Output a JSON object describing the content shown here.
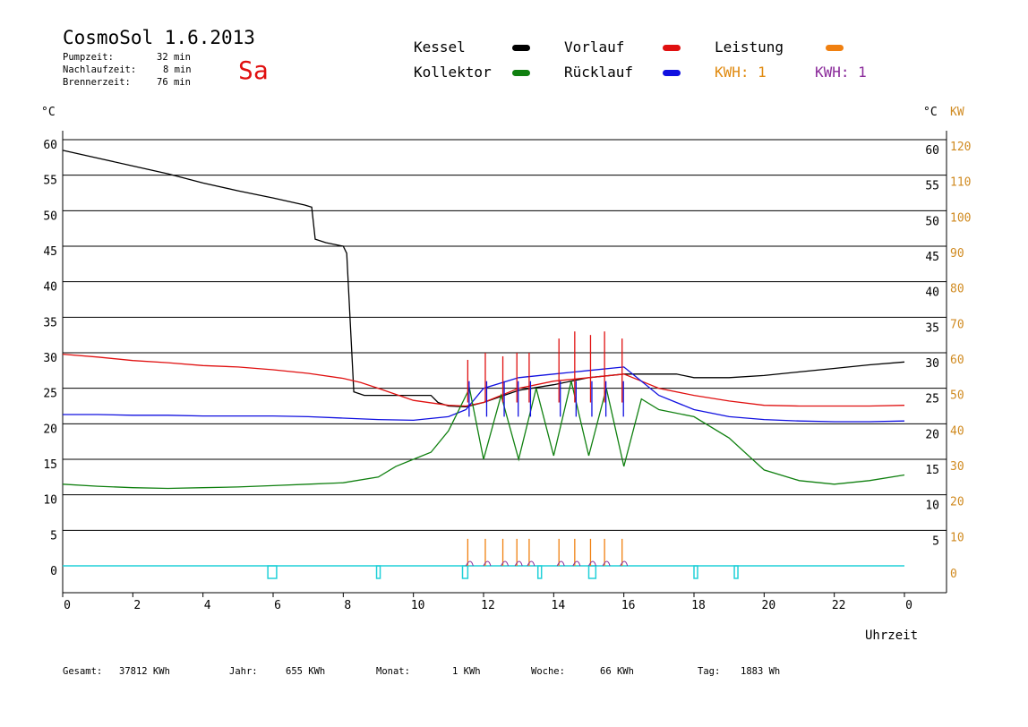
{
  "header": {
    "title": "CosmoSol 1.6.2013",
    "day": "Sa",
    "stats": [
      {
        "label": "Pumpzeit:",
        "value": "32 min"
      },
      {
        "label": "Nachlaufzeit:",
        "value": "8 min"
      },
      {
        "label": "Brennerzeit:",
        "value": "76 min"
      }
    ]
  },
  "legend": [
    {
      "name": "Kessel",
      "color": "#000000"
    },
    {
      "name": "Vorlauf",
      "color": "#e01010"
    },
    {
      "name": "Leistung",
      "color": "#f08010"
    },
    {
      "name": "Kollektor",
      "color": "#108010"
    },
    {
      "name": "Rücklauf",
      "color": "#1010e0"
    },
    {
      "name": "KWH: 1",
      "color": "#e08a10"
    },
    {
      "name": "KWH: 1",
      "color": "#8a2a9a"
    }
  ],
  "footer": [
    {
      "label": "Gesamt:",
      "value": "37812 KWh"
    },
    {
      "label": "Jahr:",
      "value": "655 KWh"
    },
    {
      "label": "Monat:",
      "value": "1 KWh"
    },
    {
      "label": "Woche:",
      "value": "66 KWh"
    },
    {
      "label": "Tag:",
      "value": "1883 Wh"
    }
  ],
  "chart_data": {
    "type": "line",
    "xlabel": "Uhrzeit",
    "ylabel_left": "°C",
    "ylabel_right": "°C",
    "ylabel_right2": "KW",
    "xlim": [
      0,
      24
    ],
    "ylim": [
      0,
      60
    ],
    "ylim_right2": [
      0,
      120
    ],
    "grid": true,
    "x_ticks": [
      "0",
      "2",
      "4",
      "6",
      "8",
      "10",
      "12",
      "14",
      "16",
      "18",
      "20",
      "22",
      "0"
    ],
    "y_ticks": [
      "0",
      "5",
      "10",
      "15",
      "20",
      "25",
      "30",
      "35",
      "40",
      "45",
      "50",
      "55",
      "60"
    ],
    "y2_ticks": [
      "10",
      "20",
      "30",
      "40",
      "50",
      "60",
      "70",
      "80",
      "90",
      "100",
      "110",
      "120"
    ],
    "series": [
      {
        "name": "Kessel",
        "color": "#000000",
        "points": [
          [
            0,
            58.5
          ],
          [
            1,
            57.4
          ],
          [
            2,
            56.3
          ],
          [
            3,
            55.2
          ],
          [
            4,
            53.9
          ],
          [
            5,
            52.8
          ],
          [
            6,
            51.8
          ],
          [
            6.9,
            50.8
          ],
          [
            7.1,
            50.5
          ],
          [
            7.2,
            46
          ],
          [
            7.5,
            45.5
          ],
          [
            8.0,
            45
          ],
          [
            8.1,
            44
          ],
          [
            8.3,
            24.5
          ],
          [
            8.6,
            24
          ],
          [
            9.5,
            24
          ],
          [
            10.5,
            24
          ],
          [
            10.7,
            23
          ],
          [
            11.0,
            22.5
          ],
          [
            11.5,
            22.4
          ],
          [
            12.0,
            23
          ],
          [
            13.0,
            24.7
          ],
          [
            14.0,
            25.5
          ],
          [
            15.0,
            26.5
          ],
          [
            16.0,
            27
          ],
          [
            17.5,
            27
          ],
          [
            18.0,
            26.5
          ],
          [
            19.0,
            26.5
          ],
          [
            20.0,
            26.8
          ],
          [
            21.0,
            27.3
          ],
          [
            22.0,
            27.8
          ],
          [
            23.0,
            28.3
          ],
          [
            24.0,
            28.7
          ]
        ]
      },
      {
        "name": "Vorlauf",
        "color": "#e01010",
        "points": [
          [
            0,
            29.8
          ],
          [
            1,
            29.4
          ],
          [
            2,
            28.9
          ],
          [
            3,
            28.6
          ],
          [
            4,
            28.2
          ],
          [
            5,
            28
          ],
          [
            6,
            27.6
          ],
          [
            7,
            27.1
          ],
          [
            8,
            26.4
          ],
          [
            8.5,
            25.8
          ],
          [
            9,
            25
          ],
          [
            10,
            23.3
          ],
          [
            11,
            22.6
          ],
          [
            11.5,
            22.5
          ],
          [
            12,
            23
          ],
          [
            13,
            25
          ],
          [
            14,
            26
          ],
          [
            15,
            26.5
          ],
          [
            16,
            27
          ],
          [
            16.5,
            26
          ],
          [
            17,
            25
          ],
          [
            18,
            24
          ],
          [
            19,
            23.2
          ],
          [
            20,
            22.6
          ],
          [
            21,
            22.5
          ],
          [
            22,
            22.5
          ],
          [
            23,
            22.5
          ],
          [
            24,
            22.6
          ]
        ]
      },
      {
        "name": "Rücklauf",
        "color": "#1010e0",
        "points": [
          [
            0,
            21.3
          ],
          [
            1,
            21.3
          ],
          [
            2,
            21.2
          ],
          [
            3,
            21.2
          ],
          [
            4,
            21.1
          ],
          [
            5,
            21.1
          ],
          [
            6,
            21.1
          ],
          [
            7,
            21
          ],
          [
            8,
            20.8
          ],
          [
            9,
            20.6
          ],
          [
            10,
            20.5
          ],
          [
            11,
            21
          ],
          [
            11.5,
            22
          ],
          [
            12,
            25
          ],
          [
            13,
            26.5
          ],
          [
            14,
            27
          ],
          [
            15,
            27.5
          ],
          [
            16,
            28
          ],
          [
            16.5,
            26
          ],
          [
            17,
            24
          ],
          [
            18,
            22
          ],
          [
            19,
            21
          ],
          [
            20,
            20.6
          ],
          [
            21,
            20.4
          ],
          [
            22,
            20.3
          ],
          [
            23,
            20.3
          ],
          [
            24,
            20.4
          ]
        ]
      },
      {
        "name": "Kollektor",
        "color": "#108010",
        "points": [
          [
            0,
            11.5
          ],
          [
            1,
            11.2
          ],
          [
            2,
            11
          ],
          [
            3,
            10.9
          ],
          [
            4,
            11
          ],
          [
            5,
            11.1
          ],
          [
            6,
            11.3
          ],
          [
            7,
            11.5
          ],
          [
            8,
            11.7
          ],
          [
            9,
            12.5
          ],
          [
            9.5,
            14
          ],
          [
            10,
            15
          ],
          [
            10.5,
            16
          ],
          [
            11,
            19
          ],
          [
            11.3,
            22
          ],
          [
            11.6,
            25
          ],
          [
            12,
            15
          ],
          [
            12.5,
            24
          ],
          [
            13,
            15
          ],
          [
            13.5,
            25
          ],
          [
            14,
            15.5
          ],
          [
            14.5,
            26
          ],
          [
            15,
            15.5
          ],
          [
            15.5,
            25
          ],
          [
            16,
            14
          ],
          [
            16.5,
            23.5
          ],
          [
            17,
            22
          ],
          [
            18,
            21
          ],
          [
            19,
            18
          ],
          [
            20,
            13.5
          ],
          [
            21,
            12
          ],
          [
            22,
            11.5
          ],
          [
            23,
            12
          ],
          [
            24,
            12.8
          ]
        ]
      }
    ],
    "spikes": [
      11.55,
      12.05,
      12.55,
      12.95,
      13.3,
      14.15,
      14.6,
      15.05,
      15.45,
      15.95
    ],
    "spike_peak_vorlauf": [
      29,
      30,
      29.5,
      30,
      30,
      32,
      33,
      32.5,
      33,
      32
    ],
    "power_pulses": [
      11.55,
      12.05,
      12.55,
      12.95,
      13.3,
      14.15,
      14.6,
      15.05,
      15.45,
      15.95
    ],
    "pump_markers": [
      [
        5.85,
        6.1
      ],
      [
        8.95,
        9.05
      ],
      [
        11.4,
        11.55
      ],
      [
        13.55,
        13.65
      ],
      [
        15.0,
        15.2
      ],
      [
        18.0,
        18.1
      ],
      [
        19.15,
        19.25
      ]
    ]
  }
}
